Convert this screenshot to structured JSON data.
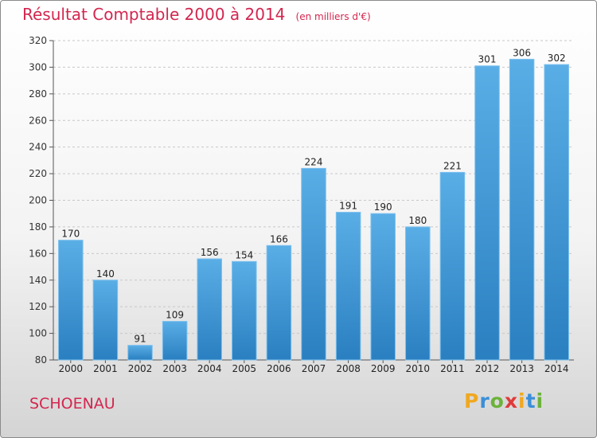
{
  "chart_data": {
    "type": "bar",
    "title": "Résultat Comptable 2000 à 2014",
    "subtitle": "(en milliers d'€)",
    "xlabel": "",
    "ylabel": "",
    "categories": [
      "2000",
      "2001",
      "2002",
      "2003",
      "2004",
      "2005",
      "2006",
      "2007",
      "2008",
      "2009",
      "2010",
      "2011",
      "2012",
      "2013",
      "2014"
    ],
    "values": [
      170,
      140,
      91,
      109,
      156,
      154,
      166,
      224,
      191,
      190,
      180,
      221,
      301,
      306,
      302
    ],
    "ylim": [
      80,
      320
    ],
    "yticks": [
      80,
      100,
      120,
      140,
      160,
      180,
      200,
      220,
      240,
      260,
      280,
      300,
      320
    ],
    "grid": true,
    "bar_color": "#3f97d6"
  },
  "footer": {
    "commune": "SCHOENAU",
    "logo_text": "Proxiti",
    "logo_colors": [
      "#f0a820",
      "#3a8fd8",
      "#6bb23a",
      "#e03a3a",
      "#f0a820",
      "#3a8fd8",
      "#6bb23a"
    ]
  },
  "colors": {
    "title": "#d3264f",
    "grid": "#c8c8c8"
  }
}
